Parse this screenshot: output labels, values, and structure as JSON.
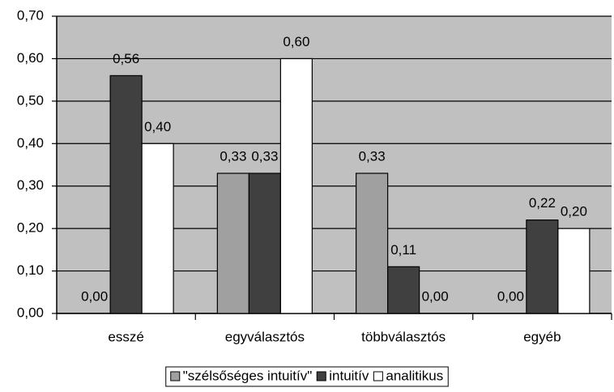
{
  "chart_data": {
    "type": "bar",
    "categories": [
      "esszé",
      "egyválasztós",
      "többválasztós",
      "egyéb"
    ],
    "series": [
      {
        "name": "\"szélsőséges intuitív\"",
        "color": "#a0a0a0",
        "values": [
          0,
          0.33,
          0.33,
          0
        ],
        "value_labels": [
          "0,00",
          "0,33",
          "0,33",
          "0,00"
        ]
      },
      {
        "name": "intuitív",
        "color": "#404040",
        "values": [
          0.56,
          0.33,
          0.11,
          0.22
        ],
        "value_labels": [
          "0,56",
          "0,33",
          "0,11",
          "0,22"
        ]
      },
      {
        "name": "analitikus",
        "color": "#ffffff",
        "values": [
          0.4,
          0.6,
          0,
          0.2
        ],
        "value_labels": [
          "0,40",
          "0,60",
          "0,00",
          "0,20"
        ]
      }
    ],
    "ylim": [
      0,
      0.7
    ],
    "yticks": [
      {
        "value": 0,
        "label": "0,00"
      },
      {
        "value": 0.1,
        "label": "0,10"
      },
      {
        "value": 0.2,
        "label": "0,20"
      },
      {
        "value": 0.3,
        "label": "0,30"
      },
      {
        "value": 0.4,
        "label": "0,40"
      },
      {
        "value": 0.5,
        "label": "0,50"
      },
      {
        "value": 0.6,
        "label": "0,60"
      },
      {
        "value": 0.7,
        "label": "0,70"
      }
    ],
    "grid": true,
    "legend": "bottom",
    "background": "#c0c0c0"
  }
}
